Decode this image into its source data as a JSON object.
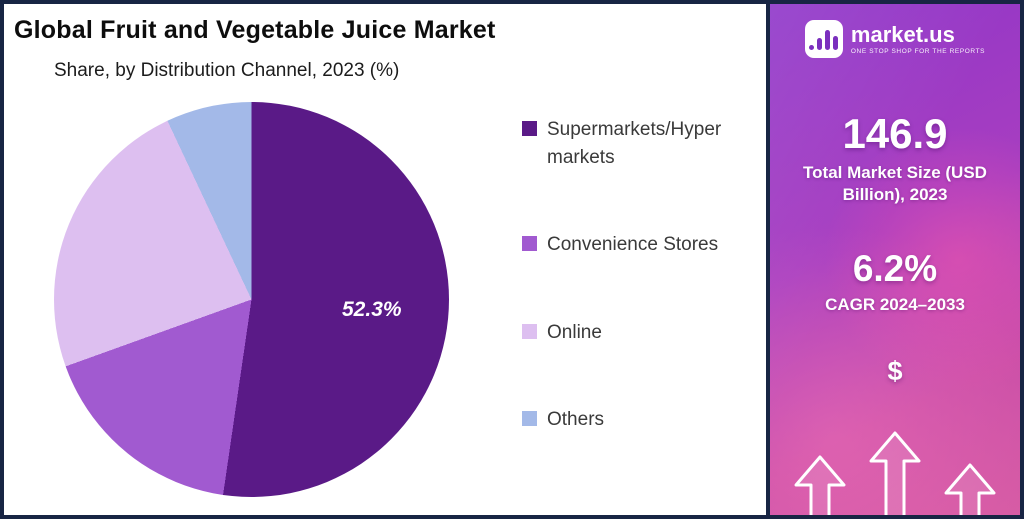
{
  "header": {
    "title": "Global Fruit and Vegetable Juice Market",
    "subtitle": "Share, by Distribution Channel, 2023 (%)"
  },
  "chart_data": {
    "type": "pie",
    "title": "Global Fruit and Vegetable Juice Market",
    "subtitle": "Share, by Distribution Channel, 2023 (%)",
    "labels": [
      "Supermarkets/Hypermarkets",
      "Convenience Stores",
      "Online",
      "Others"
    ],
    "values": [
      52.3,
      17.2,
      23.5,
      7.0
    ],
    "colors": [
      "#5a1a87",
      "#a15ad0",
      "#ddbff0",
      "#a3b9e8"
    ],
    "value_labels_visible": [
      "52.3%",
      "",
      "",
      ""
    ],
    "annotation": "52.3%",
    "start_angle_deg": 0,
    "direction": "clockwise",
    "legend_position": "right"
  },
  "legend": {
    "items": [
      {
        "label": "Supermarkets/Hyper markets",
        "color": "#5a1a87"
      },
      {
        "label": "Convenience Stores",
        "color": "#a15ad0"
      },
      {
        "label": "Online",
        "color": "#ddbff0"
      },
      {
        "label": "Others",
        "color": "#a3b9e8"
      }
    ]
  },
  "sidebar": {
    "brand": {
      "name": "market.us",
      "tagline": "ONE STOP SHOP FOR THE REPORTS"
    },
    "market_size_value": "146.9",
    "market_size_label": "Total Market Size (USD Billion), 2023",
    "cagr_value": "6.2%",
    "cagr_label": "CAGR 2024–2033",
    "dollar_symbol": "$"
  },
  "colors": {
    "frame_border": "#182544",
    "sidebar_gradient_start": "#8e35c9",
    "sidebar_gradient_end": "#d65ba4",
    "pie_label_text": "#ffffff",
    "legend_text": "#3a3a3a"
  }
}
